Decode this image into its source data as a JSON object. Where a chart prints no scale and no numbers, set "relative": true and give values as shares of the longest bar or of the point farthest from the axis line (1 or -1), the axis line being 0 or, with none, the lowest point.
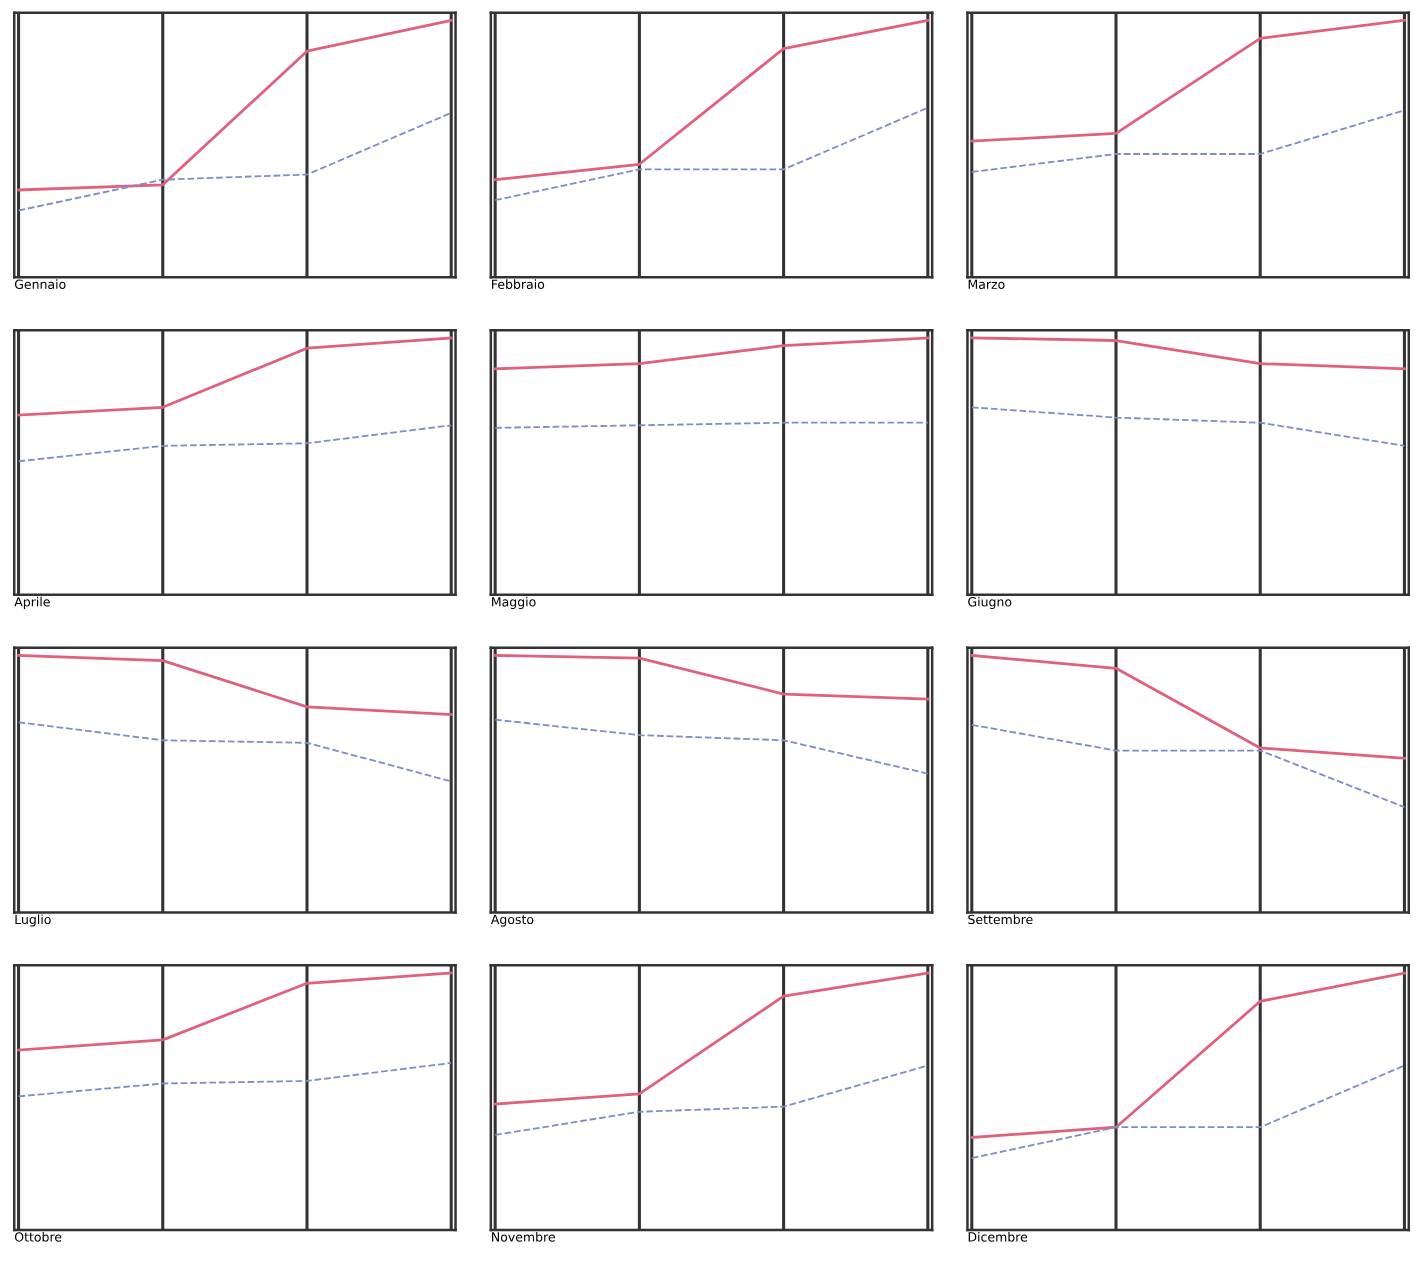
{
  "chart_data": [
    {
      "type": "line",
      "title": "Gennaio",
      "relative": true,
      "grid": "x",
      "categories": [
        null,
        null,
        null,
        null
      ],
      "series": [
        {
          "color": "#e0607e",
          "line_style": "solid",
          "values": [
            0.34,
            0.36,
            0.88,
            1
          ]
        },
        {
          "color": "#7f8cc8",
          "line_style": "dashed",
          "values": [
            0.26,
            0.38,
            0.4,
            0.64
          ]
        }
      ]
    },
    {
      "type": "line",
      "title": "Febbraio",
      "relative": true,
      "grid": "x",
      "categories": [
        null,
        null,
        null,
        null
      ],
      "series": [
        {
          "color": "#e0607e",
          "line_style": "solid",
          "values": [
            0.38,
            0.44,
            0.89,
            1
          ]
        },
        {
          "color": "#7f8cc8",
          "line_style": "dashed",
          "values": [
            0.3,
            0.42,
            0.42,
            0.66
          ]
        }
      ]
    },
    {
      "type": "line",
      "title": "Marzo",
      "relative": true,
      "grid": "x",
      "categories": [
        null,
        null,
        null,
        null
      ],
      "series": [
        {
          "color": "#e0607e",
          "line_style": "solid",
          "values": [
            0.53,
            0.56,
            0.93,
            1
          ]
        },
        {
          "color": "#7f8cc8",
          "line_style": "dashed",
          "values": [
            0.41,
            0.48,
            0.48,
            0.65
          ]
        }
      ]
    },
    {
      "type": "line",
      "title": "Aprile",
      "relative": true,
      "grid": "x",
      "categories": [
        null,
        null,
        null,
        null
      ],
      "series": [
        {
          "color": "#e0607e",
          "line_style": "solid",
          "values": [
            0.7,
            0.73,
            0.96,
            1
          ]
        },
        {
          "color": "#7f8cc8",
          "line_style": "dashed",
          "values": [
            0.52,
            0.58,
            0.59,
            0.66
          ]
        }
      ]
    },
    {
      "type": "line",
      "title": "Maggio",
      "relative": true,
      "grid": "x",
      "categories": [
        null,
        null,
        null,
        null
      ],
      "series": [
        {
          "color": "#e0607e",
          "line_style": "solid",
          "values": [
            0.88,
            0.9,
            0.97,
            1
          ]
        },
        {
          "color": "#7f8cc8",
          "line_style": "dashed",
          "values": [
            0.65,
            0.66,
            0.67,
            0.67
          ]
        }
      ]
    },
    {
      "type": "line",
      "title": "Giugno",
      "relative": true,
      "grid": "x",
      "categories": [
        null,
        null,
        null,
        null
      ],
      "series": [
        {
          "color": "#e0607e",
          "line_style": "solid",
          "values": [
            1,
            0.99,
            0.9,
            0.88
          ]
        },
        {
          "color": "#7f8cc8",
          "line_style": "dashed",
          "values": [
            0.73,
            0.69,
            0.67,
            0.58
          ]
        }
      ]
    },
    {
      "type": "line",
      "title": "Luglio",
      "relative": true,
      "grid": "x",
      "categories": [
        null,
        null,
        null,
        null
      ],
      "series": [
        {
          "color": "#e0607e",
          "line_style": "solid",
          "values": [
            1,
            0.98,
            0.8,
            0.77
          ]
        },
        {
          "color": "#7f8cc8",
          "line_style": "dashed",
          "values": [
            0.74,
            0.67,
            0.66,
            0.51
          ]
        }
      ]
    },
    {
      "type": "line",
      "title": "Agosto",
      "relative": true,
      "grid": "x",
      "categories": [
        null,
        null,
        null,
        null
      ],
      "series": [
        {
          "color": "#e0607e",
          "line_style": "solid",
          "values": [
            1,
            0.99,
            0.85,
            0.83
          ]
        },
        {
          "color": "#7f8cc8",
          "line_style": "dashed",
          "values": [
            0.75,
            0.69,
            0.67,
            0.54
          ]
        }
      ]
    },
    {
      "type": "line",
      "title": "Settembre",
      "relative": true,
      "grid": "x",
      "categories": [
        null,
        null,
        null,
        null
      ],
      "series": [
        {
          "color": "#e0607e",
          "line_style": "solid",
          "values": [
            1,
            0.95,
            0.64,
            0.6
          ]
        },
        {
          "color": "#7f8cc8",
          "line_style": "dashed",
          "values": [
            0.73,
            0.63,
            0.63,
            0.41
          ]
        }
      ]
    },
    {
      "type": "line",
      "title": "Ottobre",
      "relative": true,
      "grid": "x",
      "categories": [
        null,
        null,
        null,
        null
      ],
      "series": [
        {
          "color": "#e0607e",
          "line_style": "solid",
          "values": [
            0.7,
            0.74,
            0.96,
            1
          ]
        },
        {
          "color": "#7f8cc8",
          "line_style": "dashed",
          "values": [
            0.52,
            0.57,
            0.58,
            0.65
          ]
        }
      ]
    },
    {
      "type": "line",
      "title": "Novembre",
      "relative": true,
      "grid": "x",
      "categories": [
        null,
        null,
        null,
        null
      ],
      "series": [
        {
          "color": "#e0607e",
          "line_style": "solid",
          "values": [
            0.49,
            0.53,
            0.91,
            1
          ]
        },
        {
          "color": "#7f8cc8",
          "line_style": "dashed",
          "values": [
            0.37,
            0.46,
            0.48,
            0.64
          ]
        }
      ]
    },
    {
      "type": "line",
      "title": "Dicembre",
      "relative": true,
      "grid": "x",
      "categories": [
        null,
        null,
        null,
        null
      ],
      "series": [
        {
          "color": "#e0607e",
          "line_style": "solid",
          "values": [
            0.36,
            0.4,
            0.89,
            1
          ]
        },
        {
          "color": "#7f8cc8",
          "line_style": "dashed",
          "values": [
            0.28,
            0.4,
            0.4,
            0.64
          ]
        }
      ]
    }
  ]
}
